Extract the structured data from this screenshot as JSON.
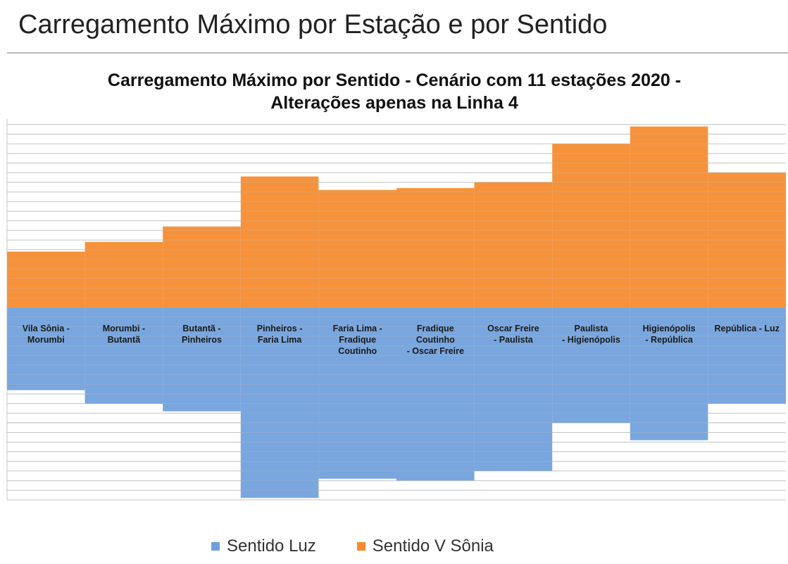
{
  "slide": {
    "title": "Carregamento Máximo por Estação e por Sentido"
  },
  "colors": {
    "luz": "#6f9fdb",
    "vsonia": "#f58a2c",
    "grid": "#c4c4c4",
    "rule": "#b9b9b9"
  },
  "chart_data": {
    "type": "bar",
    "title": [
      "Carregamento Máximo por Sentido - Cenário com 11 estações 2020 -",
      "Alterações apenas na Linha 4"
    ],
    "categories": [
      [
        "Vila Sônia -",
        "Morumbi"
      ],
      [
        "Morumbi -",
        "Butantã"
      ],
      [
        "Butantã -",
        "Pinheiros"
      ],
      [
        "Pinheiros -",
        "Faria Lima"
      ],
      [
        "Faria Lima -",
        "Fradique",
        "Coutinho"
      ],
      [
        "Fradique",
        "Coutinho",
        "- Oscar Freire"
      ],
      [
        "Oscar Freire",
        "- Paulista"
      ],
      [
        "Paulista",
        "- Higienópolis"
      ],
      [
        "Higienópolis",
        "- República"
      ],
      [
        "República - Luz"
      ]
    ],
    "ylim": [
      -50,
      49
    ],
    "grid": true,
    "legend_position": "bottom",
    "series": [
      {
        "name": "Sentido Luz",
        "color": "#6f9fdb",
        "values": [
          -21.5,
          -25,
          -27,
          -49.5,
          -44.5,
          -45,
          -42.5,
          -30,
          -34.5,
          -25
        ]
      },
      {
        "name": "Sentido V Sônia",
        "color": "#f58a2c",
        "values": [
          14.5,
          17,
          21,
          34,
          30.5,
          31,
          32.5,
          42.5,
          47,
          35
        ]
      }
    ]
  }
}
